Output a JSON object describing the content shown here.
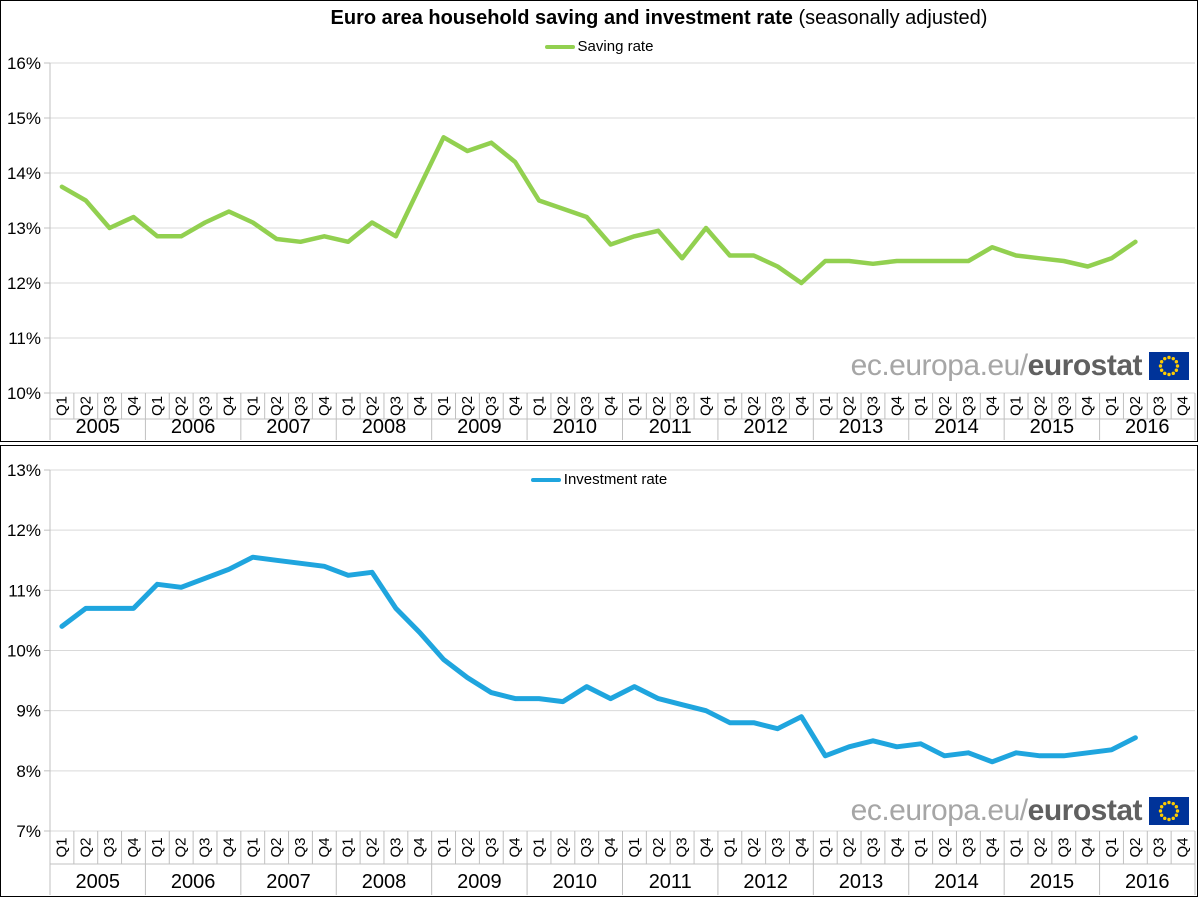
{
  "figure": {
    "title_bold": "Euro area household saving and investment rate",
    "title_normal": " (seasonally adjusted)"
  },
  "watermark": {
    "url_prefix": "ec.europa.eu/",
    "brand": "eurostat",
    "flag_blue": "#003399",
    "flag_yellow": "#FFCC00"
  },
  "x_axis": {
    "quarters": [
      "Q1",
      "Q2",
      "Q3",
      "Q4"
    ],
    "years": [
      "2005",
      "2006",
      "2007",
      "2008",
      "2009",
      "2010",
      "2011",
      "2012",
      "2013",
      "2014",
      "2015",
      "2016"
    ]
  },
  "chart_data": [
    {
      "type": "line",
      "name": "saving-rate",
      "legend": "Saving rate",
      "color": "#92D050",
      "unit": "%",
      "grid": true,
      "legend_position": "top-center",
      "ylim": [
        10,
        16
      ],
      "y_ticks": [
        "16%",
        "15%",
        "14%",
        "13%",
        "12%",
        "11%",
        "10%"
      ],
      "x_start": "2005-Q1",
      "x_end": "2016-Q2",
      "values": [
        13.75,
        13.5,
        13.0,
        13.2,
        12.85,
        12.85,
        13.1,
        13.3,
        13.1,
        12.8,
        12.75,
        12.85,
        12.75,
        13.1,
        12.85,
        13.75,
        14.65,
        14.4,
        14.55,
        14.2,
        13.5,
        13.35,
        13.2,
        12.7,
        12.85,
        12.95,
        12.45,
        13.0,
        12.5,
        12.5,
        12.3,
        12.0,
        12.4,
        12.4,
        12.35,
        12.4,
        12.4,
        12.4,
        12.4,
        12.65,
        12.5,
        12.45,
        12.4,
        12.3,
        12.45,
        12.75
      ]
    },
    {
      "type": "line",
      "name": "investment-rate",
      "legend": "Investment rate",
      "color": "#1FA5DE",
      "unit": "%",
      "grid": true,
      "legend_position": "top-center",
      "ylim": [
        7,
        13
      ],
      "y_ticks": [
        "13%",
        "12%",
        "11%",
        "10%",
        "9%",
        "8%",
        "7%"
      ],
      "x_start": "2005-Q1",
      "x_end": "2016-Q2",
      "values": [
        10.4,
        10.7,
        10.7,
        10.7,
        11.1,
        11.05,
        11.2,
        11.35,
        11.55,
        11.5,
        11.45,
        11.4,
        11.25,
        11.3,
        10.7,
        10.3,
        9.85,
        9.55,
        9.3,
        9.2,
        9.2,
        9.15,
        9.4,
        9.2,
        9.4,
        9.2,
        9.1,
        9.0,
        8.8,
        8.8,
        8.7,
        8.9,
        8.25,
        8.4,
        8.5,
        8.4,
        8.45,
        8.25,
        8.3,
        8.15,
        8.3,
        8.25,
        8.25,
        8.3,
        8.35,
        8.55
      ]
    }
  ]
}
